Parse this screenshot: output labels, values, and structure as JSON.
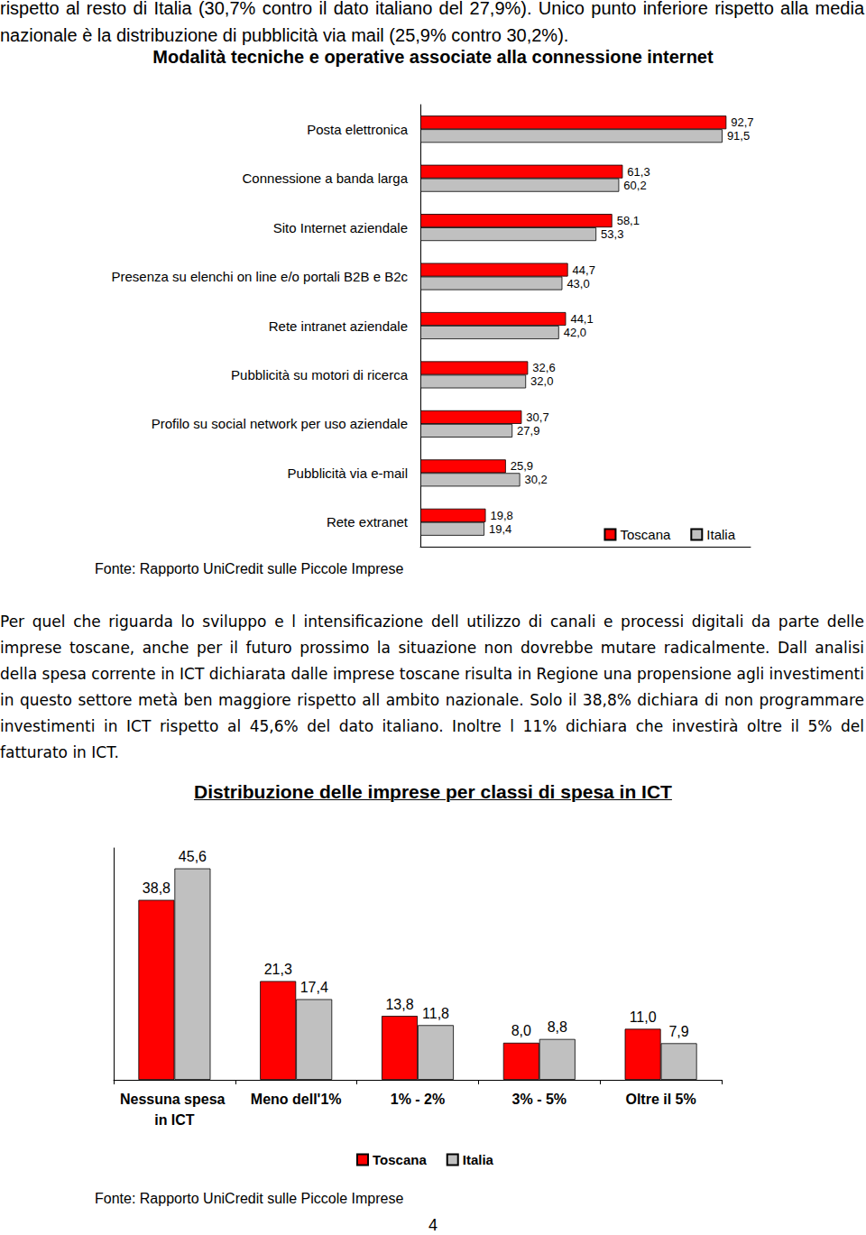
{
  "intro_text": "rispetto al resto di Italia (30,7% contro il dato italiano del 27,9%). Unico punto inferiore rispetto alla media nazionale è la distribuzione di pubblicità via mail (25,9% contro 30,2%).",
  "chart_data": [
    {
      "type": "bar",
      "title": "Modalità tecniche e operative associate alla connessione internet",
      "orientation": "horizontal",
      "categories": [
        "Posta elettronica",
        "Connessione a banda larga",
        "Sito Internet aziendale",
        "Presenza su elenchi on line e/o portali B2B e B2c",
        "Rete intranet aziendale",
        "Pubblicità su motori di ricerca",
        "Profilo su social network per uso aziendale",
        "Pubblicità via e-mail",
        "Rete extranet"
      ],
      "series": [
        {
          "name": "Toscana",
          "color": "#ff0000",
          "values": [
            92.7,
            61.3,
            58.1,
            44.7,
            44.1,
            32.6,
            30.7,
            25.9,
            19.8
          ],
          "value_labels": [
            "92,7",
            "61,3",
            "58,1",
            "44,7",
            "44,1",
            "32,6",
            "30,7",
            "25,9",
            "19,8"
          ]
        },
        {
          "name": "Italia",
          "color": "#c0c0c0",
          "values": [
            91.5,
            60.2,
            53.3,
            43.0,
            42.0,
            32.0,
            27.9,
            30.2,
            19.4
          ],
          "value_labels": [
            "91,5",
            "60,2",
            "53,3",
            "43,0",
            "42,0",
            "32,0",
            "27,9",
            "30,2",
            "19,4"
          ]
        }
      ],
      "xlim": [
        0,
        100
      ],
      "grid": false,
      "data_labels": true,
      "tick_labels": "y",
      "legend": "bottom-right",
      "source": "Fonte: Rapporto UniCredit sulle Piccole Imprese"
    },
    {
      "type": "bar",
      "title": "Distribuzione delle imprese per classi di spesa in ICT",
      "categories": [
        "Nessuna spesa in ICT",
        "Meno dell'1%",
        "1% - 2%",
        "3% - 5%",
        "Oltre il 5%"
      ],
      "series": [
        {
          "name": "Toscana",
          "color": "#ff0000",
          "values": [
            38.8,
            21.3,
            13.8,
            8.0,
            11.0
          ],
          "value_labels": [
            "38,8",
            "21,3",
            "13,8",
            "8,0",
            "11,0"
          ]
        },
        {
          "name": "Italia",
          "color": "#c0c0c0",
          "values": [
            45.6,
            17.4,
            11.8,
            8.8,
            7.9
          ],
          "value_labels": [
            "45,6",
            "17,4",
            "11,8",
            "8,8",
            "7,9"
          ]
        }
      ],
      "ylim": [
        0,
        50
      ],
      "grid": false,
      "data_labels": true,
      "tick_labels": "x",
      "legend": "bottom",
      "source": "Fonte: Rapporto UniCredit sulle Piccole Imprese"
    }
  ],
  "paragraph": "Per quel che riguarda lo sviluppo e l intensificazione dell utilizzo di canali e processi digitali da parte delle imprese toscane, anche per il futuro prossimo la situazione non dovrebbe mutare radicalmente. Dall analisi della spesa corrente in ICT dichiarata dalle imprese toscane risulta in Regione una propensione agli investimenti in questo settore metà ben maggiore rispetto all ambito nazionale. Solo il 38,8% dichiara di non programmare investimenti in ICT rispetto al 45,6% del dato italiano. Inoltre l 11% dichiara che investirà oltre il 5% del fatturato in ICT.",
  "page_number": "4"
}
